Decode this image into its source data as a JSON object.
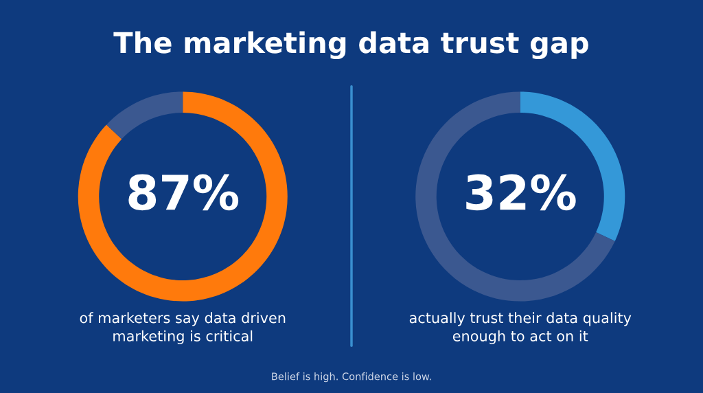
{
  "chart_data": [
    {
      "type": "donut",
      "title": "The marketing data trust gap",
      "categories": [
        null,
        null
      ],
      "values": [
        87,
        13
      ],
      "colors": [
        "#ff7a0c",
        "#3b5890"
      ],
      "value_labels": [
        "87%",
        null
      ],
      "legend": false,
      "annotations": [
        "of marketers say data driven\nmarketing is critical"
      ]
    },
    {
      "type": "donut",
      "categories": [
        null,
        null
      ],
      "values": [
        32,
        68
      ],
      "colors": [
        "#3498d8",
        "#3b5890"
      ],
      "value_labels": [
        "32%",
        null
      ],
      "legend": false,
      "annotations": [
        "actually trust their data quality\nenough to act on it",
        "Belief is high. Confidence is low."
      ]
    }
  ]
}
